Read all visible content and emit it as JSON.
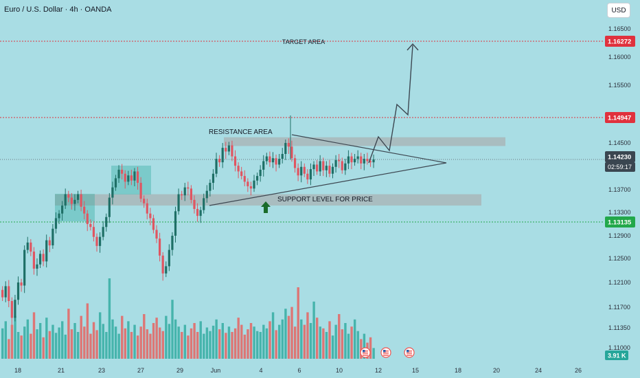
{
  "header": {
    "title": "Euro / U.S. Dollar · 4h · OANDA",
    "currency_button": "USD"
  },
  "colors": {
    "background": "#a9dde4",
    "bull": "#26a69a",
    "bear": "#ef5350",
    "candle_up": "#1e6f66",
    "candle_down": "#e05561",
    "target_line": "#e0313d",
    "support_line": "#22a84a",
    "zone": "#a9a9a9",
    "drawing": "#3c4650",
    "arrow": "#1a6b2a"
  },
  "chart_data": {
    "type": "candlestick",
    "symbol": "Euro / U.S. Dollar",
    "interval": "4h",
    "source": "OANDA",
    "currency": "USD",
    "y_ticks": [
      "1.16500",
      "1.16000",
      "1.15500",
      "1.14500",
      "1.13700",
      "1.13300",
      "1.12900",
      "1.12500",
      "1.12100",
      "1.11700",
      "1.11350",
      "1.11000"
    ],
    "x_ticks": [
      "18",
      "21",
      "23",
      "27",
      "29",
      "Jun",
      "4",
      "6",
      "10",
      "12",
      "15",
      "18",
      "20",
      "24",
      "26"
    ],
    "price_labels": {
      "target": "1.16272",
      "resistance": "1.14947",
      "current": "1.14230",
      "countdown": "02:59:17",
      "support": "1.13135",
      "volume": "3.91 K"
    },
    "horizontal_levels": [
      {
        "value": 1.16272,
        "color": "#e0313d"
      },
      {
        "value": 1.14947,
        "color": "#e0313d"
      },
      {
        "value": 1.13135,
        "color": "#22a84a"
      }
    ],
    "annotations": {
      "target": "TARGET AREA",
      "resistance": "RESISTANCE AREA",
      "support": "SUPPORT LEVEL FOR PRICE"
    },
    "zones": [
      {
        "name": "resistance-zone",
        "from": 1.1445,
        "to": 1.146
      },
      {
        "name": "support-zone",
        "from": 1.1342,
        "to": 1.1362
      }
    ],
    "closes": [
      1.1186,
      1.1204,
      1.118,
      1.1152,
      1.1182,
      1.121,
      1.1205,
      1.1265,
      1.1278,
      1.1262,
      1.1233,
      1.124,
      1.1258,
      1.1245,
      1.1282,
      1.1273,
      1.1302,
      1.132,
      1.1328,
      1.1342,
      1.1362,
      1.1356,
      1.1345,
      1.1352,
      1.1362,
      1.134,
      1.1328,
      1.131,
      1.1305,
      1.1288,
      1.1272,
      1.1288,
      1.1305,
      1.1322,
      1.1356,
      1.1374,
      1.139,
      1.1405,
      1.1398,
      1.1384,
      1.1395,
      1.1386,
      1.1402,
      1.1382,
      1.1354,
      1.1346,
      1.1328,
      1.132,
      1.13,
      1.1285,
      1.1255,
      1.1225,
      1.1237,
      1.1265,
      1.129,
      1.1332,
      1.1362,
      1.136,
      1.1374,
      1.1372,
      1.1352,
      1.1336,
      1.1324,
      1.1334,
      1.1355,
      1.1368,
      1.1382,
      1.1398,
      1.1424,
      1.1418,
      1.1442,
      1.1436,
      1.1446,
      1.1428,
      1.1412,
      1.1402,
      1.1394,
      1.1384,
      1.1376,
      1.1372,
      1.1386,
      1.1394,
      1.1405,
      1.142,
      1.1428,
      1.1418,
      1.1425,
      1.1414,
      1.1424,
      1.1432,
      1.145,
      1.1444,
      1.1425,
      1.1408,
      1.1395,
      1.141,
      1.1398,
      1.1388,
      1.1406,
      1.1414,
      1.1402,
      1.142,
      1.1404,
      1.1412,
      1.1398,
      1.141,
      1.1422,
      1.142,
      1.1404,
      1.1416,
      1.1428,
      1.1418,
      1.1424,
      1.1428,
      1.1416,
      1.1424,
      1.142,
      1.1418,
      1.1423
    ],
    "volumes": [
      0.34,
      0.42,
      0.22,
      0.38,
      0.48,
      0.3,
      0.26,
      0.36,
      0.44,
      0.28,
      0.52,
      0.33,
      0.4,
      0.24,
      0.46,
      0.31,
      0.38,
      0.29,
      0.35,
      0.42,
      0.27,
      0.56,
      0.33,
      0.4,
      0.3,
      0.48,
      0.36,
      0.62,
      0.28,
      0.41,
      0.32,
      0.52,
      0.39,
      0.3,
      0.9,
      0.44,
      0.36,
      0.28,
      0.48,
      0.34,
      0.42,
      0.3,
      0.38,
      0.26,
      0.36,
      0.5,
      0.33,
      0.28,
      0.4,
      0.46,
      0.35,
      0.31,
      0.48,
      0.39,
      0.66,
      0.44,
      0.36,
      0.3,
      0.38,
      0.26,
      0.34,
      0.4,
      0.3,
      0.42,
      0.28,
      0.35,
      0.31,
      0.37,
      0.44,
      0.33,
      0.4,
      0.29,
      0.36,
      0.3,
      0.34,
      0.46,
      0.38,
      0.27,
      0.33,
      0.4,
      0.36,
      0.31,
      0.3,
      0.38,
      0.34,
      0.42,
      0.52,
      0.32,
      0.38,
      0.44,
      0.56,
      0.48,
      0.58,
      0.36,
      0.8,
      0.44,
      0.38,
      0.52,
      0.4,
      0.64,
      0.46,
      0.36,
      0.34,
      0.3,
      0.42,
      0.26,
      0.38,
      0.5,
      0.33,
      0.4,
      0.28,
      0.36,
      0.44,
      0.31,
      0.22,
      0.28,
      0.18,
      0.24,
      0.12
    ]
  }
}
